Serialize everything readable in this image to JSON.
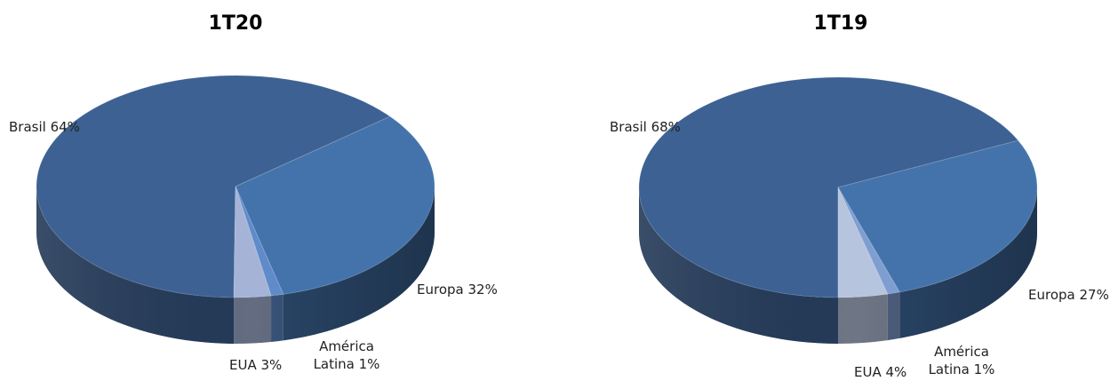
{
  "chart_data": [
    {
      "type": "pie",
      "title": "1T20",
      "slices": [
        {
          "label": "Brasil",
          "value": 64,
          "text": "Brasil  64%",
          "color": "#3C6192"
        },
        {
          "label": "Europa",
          "value": 32,
          "text": "Europa 32%",
          "color": "#4473AC"
        },
        {
          "label": "América Latina",
          "value": 1,
          "text": "América Latina  1%",
          "color": "#5F8BCA"
        },
        {
          "label": "EUA",
          "value": 3,
          "text": "EUA  3%",
          "color": "#A5B4D6"
        }
      ]
    },
    {
      "type": "pie",
      "title": "1T19",
      "slices": [
        {
          "label": "Brasil",
          "value": 68,
          "text": "Brasil  68%",
          "color": "#3C6192"
        },
        {
          "label": "Europa",
          "value": 27,
          "text": "Europa  27%",
          "color": "#4473AC"
        },
        {
          "label": "América Latina",
          "value": 1,
          "text": "América Latina  1%",
          "color": "#7E9ED2"
        },
        {
          "label": "EUA",
          "value": 4,
          "text": "EUA  4%",
          "color": "#B7C4DE"
        }
      ]
    }
  ],
  "labels": {
    "p1": {
      "brasil": "Brasil  64%",
      "europa": "Europa 32%",
      "america_1": "América",
      "america_2": "Latina  1%",
      "eua": "EUA  3%"
    },
    "p2": {
      "brasil": "Brasil  68%",
      "europa": "Europa  27%",
      "america_1": "América",
      "america_2": "Latina  1%",
      "eua": "EUA  4%"
    }
  }
}
